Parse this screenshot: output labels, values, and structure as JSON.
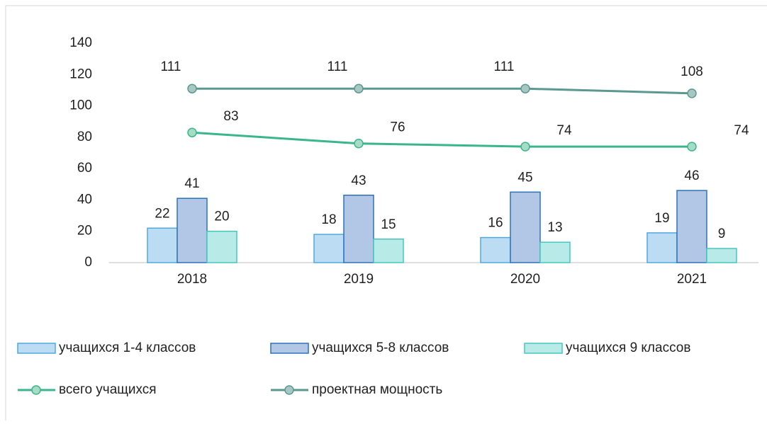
{
  "chart_data": {
    "type": "bar",
    "categories": [
      "2018",
      "2019",
      "2020",
      "2021"
    ],
    "series": [
      {
        "name": "учащихся 1-4 классов",
        "type": "bar",
        "color": "#bcdcf4",
        "stroke": "#4fa9e0",
        "values": [
          22,
          18,
          16,
          19
        ]
      },
      {
        "name": "учащихся 5-8  классов",
        "type": "bar",
        "color": "#b2c6e6",
        "stroke": "#2e72b8",
        "values": [
          41,
          43,
          45,
          46
        ]
      },
      {
        "name": "учащихся 9 классов",
        "type": "bar",
        "color": "#b8ebe8",
        "stroke": "#46c6c0",
        "values": [
          20,
          15,
          13,
          9
        ]
      },
      {
        "name": "всего учащихся",
        "type": "line",
        "color": "#3bb58c",
        "marker": "#a6dcc6",
        "values": [
          83,
          76,
          74,
          74
        ]
      },
      {
        "name": "проектная мощность",
        "type": "line",
        "color": "#5b9892",
        "marker": "#a6c7c2",
        "values": [
          111,
          111,
          111,
          108
        ]
      }
    ],
    "ylim": [
      0,
      140
    ],
    "yticks": [
      0,
      20,
      40,
      60,
      80,
      100,
      120,
      140
    ],
    "grid": false,
    "legend": "bottom"
  }
}
